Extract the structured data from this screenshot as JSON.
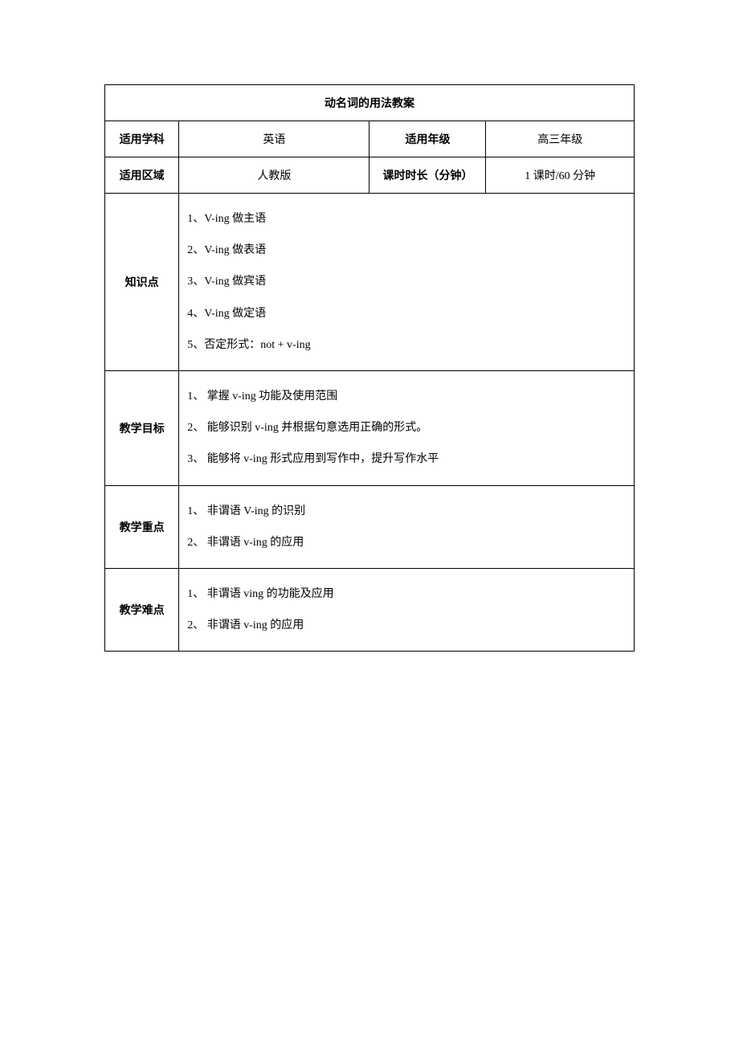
{
  "title": "动名词的用法教案",
  "labels": {
    "subject": "适用学科",
    "grade": "适用年级",
    "region": "适用区域",
    "duration": "课时时长（分钟）",
    "knowledge": "知识点",
    "objective": "教学目标",
    "focus": "教学重点",
    "difficulty": "教学难点"
  },
  "values": {
    "subject": "英语",
    "grade": "高三年级",
    "region": "人教版",
    "duration": "1 课时/60 分钟"
  },
  "knowledge": {
    "item1": "1、V-ing 做主语",
    "item2": "2、V-ing 做表语",
    "item3": "3、V-ing  做宾语",
    "item4": "4、V-ing 做定语",
    "item5": "5、否定形式：not + v-ing"
  },
  "objective": {
    "item1": "1、 掌握 v-ing 功能及使用范围",
    "item2": "2、 能够识别 v-ing 并根据句意选用正确的形式。",
    "item3": "3、 能够将 v-ing 形式应用到写作中，提升写作水平"
  },
  "focus": {
    "item1": "1、 非谓语 V-ing 的识别",
    "item2": "2、 非谓语 v-ing 的应用"
  },
  "difficulty": {
    "item1": "1、 非谓语 ving 的功能及应用",
    "item2": "2、 非谓语 v-ing 的应用"
  }
}
